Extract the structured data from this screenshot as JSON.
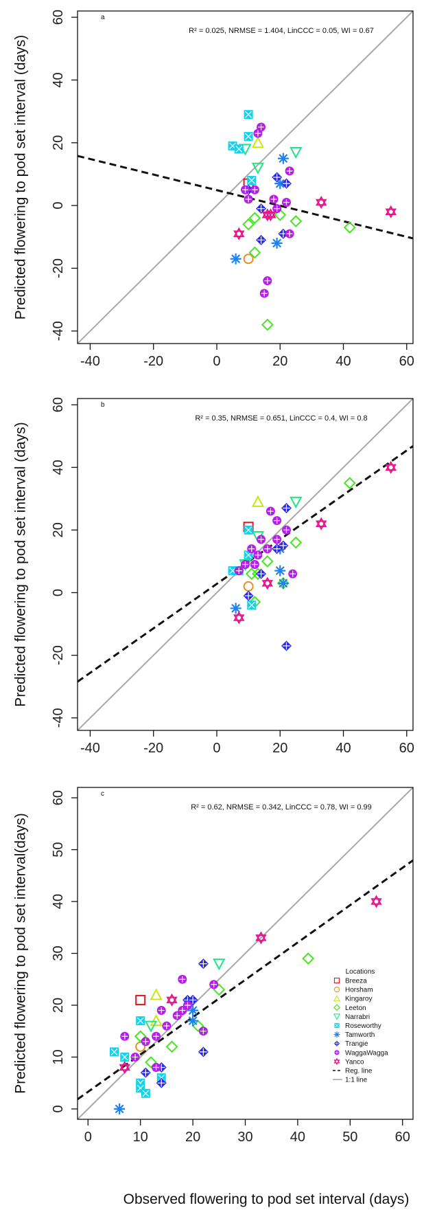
{
  "figure": {
    "xlabel": "Observed flowering to pod set interval (days)"
  },
  "legend": {
    "title": "Locations",
    "reg_line_label": "Reg. line",
    "identity_line_label": "1:1 line"
  },
  "locations": [
    {
      "name": "Breeza",
      "color": "#e8141c",
      "marker": "square-open"
    },
    {
      "name": "Horsham",
      "color": "#ee8c1e",
      "marker": "circle-open"
    },
    {
      "name": "Kingaroy",
      "color": "#c8e614",
      "marker": "triangle-up-open"
    },
    {
      "name": "Leeton",
      "color": "#46e61e",
      "marker": "diamond-open"
    },
    {
      "name": "Narrabri",
      "color": "#1ee682",
      "marker": "triangle-down-open"
    },
    {
      "name": "Roseworthy",
      "color": "#14d2ec",
      "marker": "square-x"
    },
    {
      "name": "Tamworth",
      "color": "#1e82f0",
      "marker": "asterisk"
    },
    {
      "name": "Trangie",
      "color": "#2828e6",
      "marker": "diamond-plus"
    },
    {
      "name": "WaggaWagga",
      "color": "#b41ee6",
      "marker": "circle-plus"
    },
    {
      "name": "Yanco",
      "color": "#e6148c",
      "marker": "star-of-david"
    }
  ],
  "chart_data": [
    {
      "type": "scatter",
      "panel_label": "a",
      "stats_text": "R² = 0.025,  NRMSE = 1.404,  LinCCC = 0.05,  WI = 0.67",
      "ylabel": "Predicted flowering to pod set interval (days)",
      "xlim": [
        -44,
        62
      ],
      "ylim": [
        -44,
        62
      ],
      "xticks": [
        -40,
        -20,
        0,
        20,
        40,
        60
      ],
      "yticks": [
        -40,
        -20,
        0,
        20,
        40,
        60
      ],
      "identity_line": true,
      "reg_line": {
        "intercept": 4.9,
        "slope": -0.248
      },
      "points": [
        {
          "loc": "Breeza",
          "x": 10,
          "y": 7
        },
        {
          "loc": "Horsham",
          "x": 10,
          "y": -17
        },
        {
          "loc": "Kingaroy",
          "x": 13,
          "y": 20
        },
        {
          "loc": "Leeton",
          "x": 10,
          "y": -6
        },
        {
          "loc": "Leeton",
          "x": 12,
          "y": -15
        },
        {
          "loc": "Leeton",
          "x": 12,
          "y": -4
        },
        {
          "loc": "Leeton",
          "x": 16,
          "y": -38
        },
        {
          "loc": "Leeton",
          "x": 20,
          "y": -3
        },
        {
          "loc": "Leeton",
          "x": 25,
          "y": -5
        },
        {
          "loc": "Leeton",
          "x": 42,
          "y": -7
        },
        {
          "loc": "Narrabri",
          "x": 9,
          "y": 18
        },
        {
          "loc": "Narrabri",
          "x": 13,
          "y": 12
        },
        {
          "loc": "Narrabri",
          "x": 25,
          "y": 17
        },
        {
          "loc": "Roseworthy",
          "x": 5,
          "y": 19
        },
        {
          "loc": "Roseworthy",
          "x": 7,
          "y": 18
        },
        {
          "loc": "Roseworthy",
          "x": 10,
          "y": 29
        },
        {
          "loc": "Roseworthy",
          "x": 10,
          "y": 22
        },
        {
          "loc": "Roseworthy",
          "x": 11,
          "y": 8
        },
        {
          "loc": "Tamworth",
          "x": 6,
          "y": -17
        },
        {
          "loc": "Tamworth",
          "x": 19,
          "y": -12
        },
        {
          "loc": "Tamworth",
          "x": 20,
          "y": 7
        },
        {
          "loc": "Tamworth",
          "x": 21,
          "y": 15
        },
        {
          "loc": "Trangie",
          "x": 10,
          "y": 5
        },
        {
          "loc": "Trangie",
          "x": 14,
          "y": -1
        },
        {
          "loc": "Trangie",
          "x": 14,
          "y": -11
        },
        {
          "loc": "Trangie",
          "x": 19,
          "y": 9
        },
        {
          "loc": "Trangie",
          "x": 21,
          "y": -9
        },
        {
          "loc": "Trangie",
          "x": 22,
          "y": 7
        },
        {
          "loc": "WaggaWagga",
          "x": 9,
          "y": 5
        },
        {
          "loc": "WaggaWagga",
          "x": 10,
          "y": 2
        },
        {
          "loc": "WaggaWagga",
          "x": 12,
          "y": 5
        },
        {
          "loc": "WaggaWagga",
          "x": 13,
          "y": 23
        },
        {
          "loc": "WaggaWagga",
          "x": 14,
          "y": 25
        },
        {
          "loc": "WaggaWagga",
          "x": 15,
          "y": -28
        },
        {
          "loc": "WaggaWagga",
          "x": 16,
          "y": -24
        },
        {
          "loc": "WaggaWagga",
          "x": 18,
          "y": 2
        },
        {
          "loc": "WaggaWagga",
          "x": 19,
          "y": -1
        },
        {
          "loc": "WaggaWagga",
          "x": 22,
          "y": 1
        },
        {
          "loc": "WaggaWagga",
          "x": 23,
          "y": -9
        },
        {
          "loc": "WaggaWagga",
          "x": 23,
          "y": 11
        },
        {
          "loc": "Yanco",
          "x": 7,
          "y": -9
        },
        {
          "loc": "Yanco",
          "x": 16,
          "y": -3
        },
        {
          "loc": "Yanco",
          "x": 17,
          "y": -3
        },
        {
          "loc": "Yanco",
          "x": 33,
          "y": 1
        },
        {
          "loc": "Yanco",
          "x": 55,
          "y": -2
        }
      ]
    },
    {
      "type": "scatter",
      "panel_label": "b",
      "stats_text": "R² = 0.35,  NRMSE = 0.651,  LinCCC = 0.4,  WI = 0.8",
      "ylabel": "Predicted flowering to pod set interval (days)",
      "xlim": [
        -44,
        62
      ],
      "ylim": [
        -44,
        62
      ],
      "xticks": [
        -40,
        -20,
        0,
        20,
        40,
        60
      ],
      "yticks": [
        -40,
        -20,
        0,
        20,
        40,
        60
      ],
      "identity_line": true,
      "reg_line": {
        "intercept": 2.8,
        "slope": 0.71
      },
      "points": [
        {
          "loc": "Breeza",
          "x": 10,
          "y": 21
        },
        {
          "loc": "Horsham",
          "x": 10,
          "y": 2
        },
        {
          "loc": "Kingaroy",
          "x": 13,
          "y": 29
        },
        {
          "loc": "Leeton",
          "x": 11,
          "y": 6
        },
        {
          "loc": "Leeton",
          "x": 12,
          "y": -3
        },
        {
          "loc": "Leeton",
          "x": 13,
          "y": 6
        },
        {
          "loc": "Leeton",
          "x": 16,
          "y": 10
        },
        {
          "loc": "Leeton",
          "x": 21,
          "y": 3
        },
        {
          "loc": "Leeton",
          "x": 25,
          "y": 16
        },
        {
          "loc": "Leeton",
          "x": 42,
          "y": 35
        },
        {
          "loc": "Narrabri",
          "x": 9,
          "y": 9
        },
        {
          "loc": "Narrabri",
          "x": 13,
          "y": 18
        },
        {
          "loc": "Narrabri",
          "x": 25,
          "y": 29
        },
        {
          "loc": "Roseworthy",
          "x": 5,
          "y": 7
        },
        {
          "loc": "Roseworthy",
          "x": 7,
          "y": 7
        },
        {
          "loc": "Roseworthy",
          "x": 10,
          "y": 20
        },
        {
          "loc": "Roseworthy",
          "x": 10,
          "y": 12
        },
        {
          "loc": "Roseworthy",
          "x": 11,
          "y": -4
        },
        {
          "loc": "Tamworth",
          "x": 6,
          "y": -5
        },
        {
          "loc": "Tamworth",
          "x": 20,
          "y": 7
        },
        {
          "loc": "Tamworth",
          "x": 20,
          "y": 14
        },
        {
          "loc": "Tamworth",
          "x": 21,
          "y": 3
        },
        {
          "loc": "Trangie",
          "x": 10,
          "y": -1
        },
        {
          "loc": "Trangie",
          "x": 14,
          "y": 6
        },
        {
          "loc": "Trangie",
          "x": 19,
          "y": 14
        },
        {
          "loc": "Trangie",
          "x": 21,
          "y": 15
        },
        {
          "loc": "Trangie",
          "x": 22,
          "y": 27
        },
        {
          "loc": "Trangie",
          "x": 22,
          "y": -17
        },
        {
          "loc": "WaggaWagga",
          "x": 7,
          "y": 7
        },
        {
          "loc": "WaggaWagga",
          "x": 9,
          "y": 9
        },
        {
          "loc": "WaggaWagga",
          "x": 11,
          "y": 14
        },
        {
          "loc": "WaggaWagga",
          "x": 12,
          "y": 9
        },
        {
          "loc": "WaggaWagga",
          "x": 13,
          "y": 12
        },
        {
          "loc": "WaggaWagga",
          "x": 14,
          "y": 17
        },
        {
          "loc": "WaggaWagga",
          "x": 16,
          "y": 14
        },
        {
          "loc": "WaggaWagga",
          "x": 17,
          "y": 26
        },
        {
          "loc": "WaggaWagga",
          "x": 19,
          "y": 23
        },
        {
          "loc": "WaggaWagga",
          "x": 19,
          "y": 17
        },
        {
          "loc": "WaggaWagga",
          "x": 22,
          "y": 20
        },
        {
          "loc": "WaggaWagga",
          "x": 24,
          "y": 6
        },
        {
          "loc": "Yanco",
          "x": 7,
          "y": -8
        },
        {
          "loc": "Yanco",
          "x": 16,
          "y": 3
        },
        {
          "loc": "Yanco",
          "x": 33,
          "y": 22
        },
        {
          "loc": "Yanco",
          "x": 55,
          "y": 40
        }
      ]
    },
    {
      "type": "scatter",
      "panel_label": "c",
      "stats_text": "R² = 0.62,  NRMSE = 0.342,  LinCCC = 0.78,  WI = 0.99",
      "ylabel": "Predicted flowering to pod set interval(days)",
      "xlim": [
        -2,
        62
      ],
      "ylim": [
        -2,
        62
      ],
      "xticks": [
        0,
        10,
        20,
        30,
        40,
        50,
        60
      ],
      "yticks": [
        0,
        10,
        20,
        30,
        40,
        50,
        60
      ],
      "identity_line": true,
      "reg_line": {
        "intercept": 3.3,
        "slope": 0.72
      },
      "legend_placement": "bottom-right",
      "points": [
        {
          "loc": "Breeza",
          "x": 10,
          "y": 21
        },
        {
          "loc": "Horsham",
          "x": 10,
          "y": 12
        },
        {
          "loc": "Kingaroy",
          "x": 13,
          "y": 22
        },
        {
          "loc": "Kingaroy",
          "x": 13,
          "y": 17
        },
        {
          "loc": "Leeton",
          "x": 10,
          "y": 14
        },
        {
          "loc": "Leeton",
          "x": 12,
          "y": 9
        },
        {
          "loc": "Leeton",
          "x": 16,
          "y": 12
        },
        {
          "loc": "Leeton",
          "x": 21,
          "y": 16
        },
        {
          "loc": "Leeton",
          "x": 25,
          "y": 23
        },
        {
          "loc": "Leeton",
          "x": 42,
          "y": 29
        },
        {
          "loc": "Narrabri",
          "x": 12,
          "y": 16
        },
        {
          "loc": "Narrabri",
          "x": 25,
          "y": 28
        },
        {
          "loc": "Roseworthy",
          "x": 5,
          "y": 11
        },
        {
          "loc": "Roseworthy",
          "x": 7,
          "y": 10
        },
        {
          "loc": "Roseworthy",
          "x": 10,
          "y": 17
        },
        {
          "loc": "Roseworthy",
          "x": 10,
          "y": 5
        },
        {
          "loc": "Roseworthy",
          "x": 10,
          "y": 4
        },
        {
          "loc": "Roseworthy",
          "x": 11,
          "y": 3
        },
        {
          "loc": "Roseworthy",
          "x": 14,
          "y": 6
        },
        {
          "loc": "Tamworth",
          "x": 6,
          "y": 0
        },
        {
          "loc": "Tamworth",
          "x": 20,
          "y": 17
        },
        {
          "loc": "Tamworth",
          "x": 20,
          "y": 19
        },
        {
          "loc": "Trangie",
          "x": 11,
          "y": 7
        },
        {
          "loc": "Trangie",
          "x": 14,
          "y": 8
        },
        {
          "loc": "Trangie",
          "x": 14,
          "y": 5
        },
        {
          "loc": "Trangie",
          "x": 19,
          "y": 21
        },
        {
          "loc": "Trangie",
          "x": 20,
          "y": 21
        },
        {
          "loc": "Trangie",
          "x": 22,
          "y": 28
        },
        {
          "loc": "Trangie",
          "x": 22,
          "y": 11
        },
        {
          "loc": "WaggaWagga",
          "x": 7,
          "y": 14
        },
        {
          "loc": "WaggaWagga",
          "x": 9,
          "y": 10
        },
        {
          "loc": "WaggaWagga",
          "x": 11,
          "y": 13
        },
        {
          "loc": "WaggaWagga",
          "x": 13,
          "y": 14
        },
        {
          "loc": "WaggaWagga",
          "x": 13,
          "y": 8
        },
        {
          "loc": "WaggaWagga",
          "x": 14,
          "y": 19
        },
        {
          "loc": "WaggaWagga",
          "x": 15,
          "y": 16
        },
        {
          "loc": "WaggaWagga",
          "x": 17,
          "y": 18
        },
        {
          "loc": "WaggaWagga",
          "x": 18,
          "y": 19
        },
        {
          "loc": "WaggaWagga",
          "x": 18,
          "y": 25
        },
        {
          "loc": "WaggaWagga",
          "x": 19,
          "y": 20
        },
        {
          "loc": "WaggaWagga",
          "x": 22,
          "y": 15
        },
        {
          "loc": "WaggaWagga",
          "x": 24,
          "y": 24
        },
        {
          "loc": "Yanco",
          "x": 7,
          "y": 8
        },
        {
          "loc": "Yanco",
          "x": 16,
          "y": 21
        },
        {
          "loc": "Yanco",
          "x": 33,
          "y": 33
        },
        {
          "loc": "Yanco",
          "x": 55,
          "y": 40
        }
      ]
    }
  ]
}
